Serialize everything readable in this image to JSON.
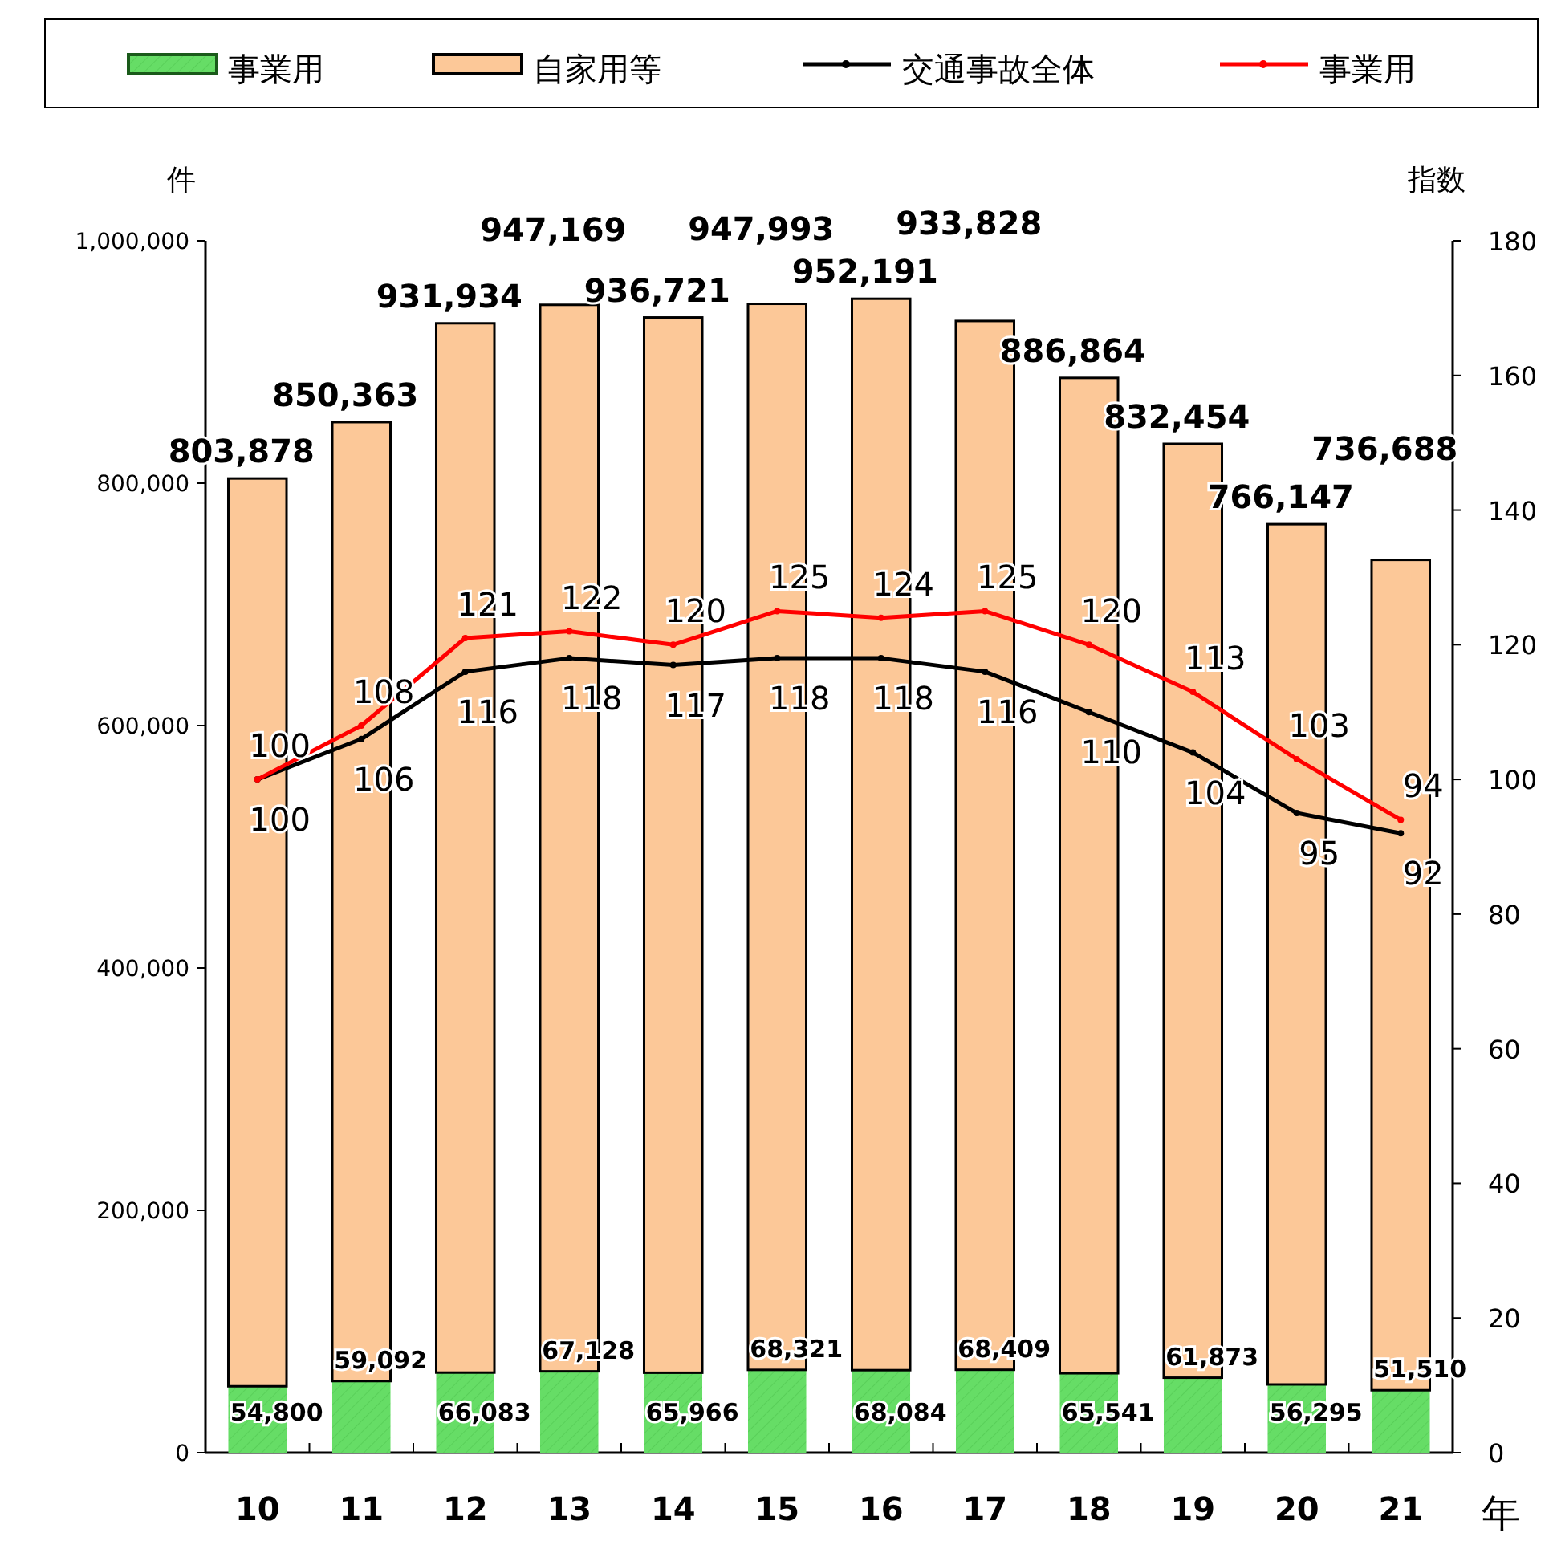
{
  "chart_data": {
    "type": "bar",
    "stacked": true,
    "categories": [
      "10",
      "11",
      "12",
      "13",
      "14",
      "15",
      "16",
      "17",
      "18",
      "19",
      "20",
      "21"
    ],
    "xlabel": "年",
    "ylabel": "件",
    "y2label": "指数",
    "ylim": [
      0,
      1000000
    ],
    "yticks": [
      {
        "value": 0,
        "label": "0"
      },
      {
        "value": 200000,
        "label": "200,000"
      },
      {
        "value": 400000,
        "label": "400,000"
      },
      {
        "value": 600000,
        "label": "600,000"
      },
      {
        "value": 800000,
        "label": "800,000"
      },
      {
        "value": 1000000,
        "label": "1,000,000"
      }
    ],
    "y2lim": [
      0,
      180
    ],
    "y2ticks": [
      0,
      20,
      40,
      60,
      80,
      100,
      120,
      140,
      160,
      180
    ],
    "legend": "top",
    "grid": false,
    "series": [
      {
        "name": "事業用",
        "color": "#66dd66",
        "values": [
          54800,
          59092,
          66083,
          67128,
          65966,
          68321,
          68084,
          68409,
          65541,
          61873,
          56295,
          51510
        ],
        "value_labels": [
          "54,800",
          "59,092",
          "66,083",
          "67,128",
          "65,966",
          "68,321",
          "68,084",
          "68,409",
          "65,541",
          "61,873",
          "56,295",
          "51,510"
        ]
      },
      {
        "name": "自家用等",
        "color": "#fcc898",
        "values": [
          749078,
          791271,
          865851,
          880041,
          870755,
          879672,
          884107,
          865419,
          821323,
          770581,
          709852,
          685178
        ]
      },
      {
        "name": "交通事故全体",
        "type": "line",
        "axis": "y2",
        "color": "#000000",
        "marker": "circle",
        "values": [
          100,
          106,
          116,
          118,
          117,
          118,
          118,
          116,
          110,
          104,
          95,
          92
        ],
        "value_labels": [
          "100",
          "106",
          "116",
          "118",
          "117",
          "118",
          "118",
          "116",
          "110",
          "104",
          "95",
          "92"
        ]
      },
      {
        "name": "事業用",
        "type": "line",
        "axis": "y2",
        "color": "#ff0000",
        "marker": "circle",
        "values": [
          100,
          108,
          121,
          122,
          120,
          125,
          124,
          125,
          120,
          113,
          103,
          94
        ],
        "value_labels": [
          "100",
          "108",
          "121",
          "122",
          "120",
          "125",
          "124",
          "125",
          "120",
          "113",
          "103",
          "94"
        ]
      }
    ],
    "totals": [
      "803,878",
      "850,363",
      "931,934",
      "947,169",
      "936,721",
      "947,993",
      "952,191",
      "933,828",
      "886,864",
      "832,454",
      "766,147",
      "736,688"
    ]
  }
}
